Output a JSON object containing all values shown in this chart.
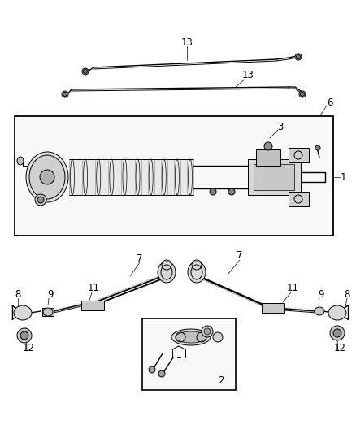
{
  "bg_color": "#ffffff",
  "line_color": "#000000",
  "part_color": "#888888",
  "fig_width": 4.38,
  "fig_height": 5.33,
  "dpi": 100,
  "label_fontsize": 8.5
}
